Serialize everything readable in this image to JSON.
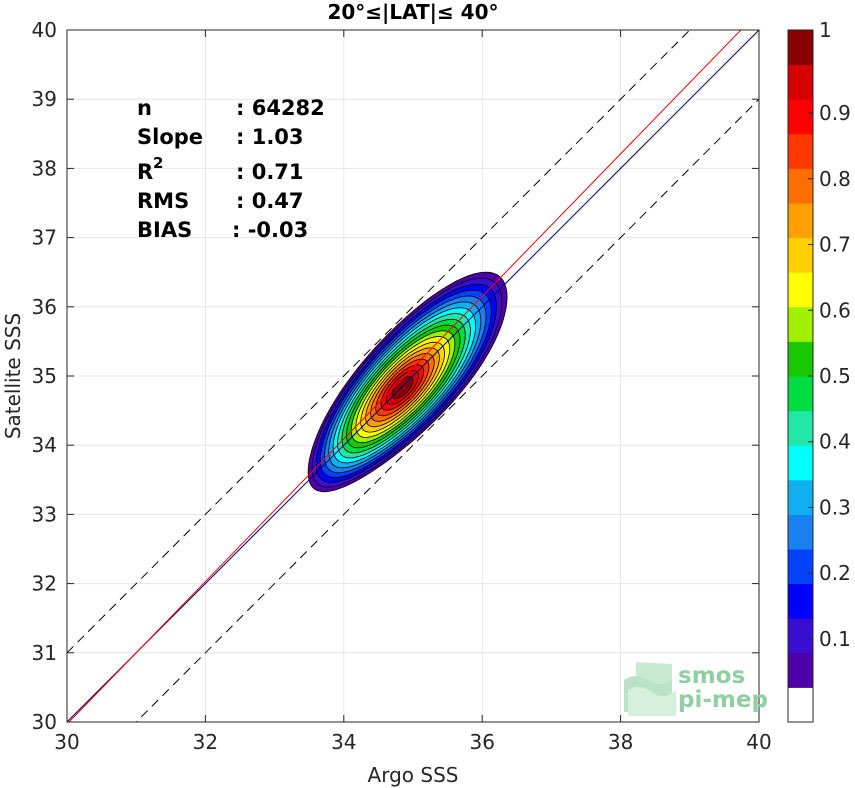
{
  "chart_data": {
    "type": "contour",
    "title": "20°≤|LAT|≤ 40°",
    "xlabel": "Argo SSS",
    "ylabel": "Satellite SSS",
    "xlim": [
      30,
      40
    ],
    "ylim": [
      30,
      40
    ],
    "xticks": [
      30,
      32,
      34,
      36,
      38,
      40
    ],
    "yticks": [
      30,
      31,
      32,
      33,
      34,
      35,
      36,
      37,
      38,
      39,
      40
    ],
    "grid": true,
    "stats": {
      "n_label": "n",
      "n_value": ": 64282",
      "slope_label": "Slope",
      "slope_value": ": 1.03",
      "r2_label": "R",
      "r2_sup": "2",
      "r2_value": ": 0.71",
      "rms_label": "RMS",
      "rms_value": ": 0.47",
      "bias_label": "BIAS",
      "bias_value": ": -0.03"
    },
    "reference_lines": [
      {
        "name": "one-to-one",
        "color": "#000080",
        "style": "solid",
        "intercept": 0
      },
      {
        "name": "plus-one",
        "color": "#000000",
        "style": "dashed",
        "intercept": 1
      },
      {
        "name": "minus-one",
        "color": "#000000",
        "style": "dashed",
        "intercept": -1
      }
    ],
    "regression_line": {
      "color": "#ff0000",
      "slope": 1.03,
      "bias": -0.03,
      "x_range": [
        30,
        40
      ]
    },
    "density": {
      "center": [
        34.85,
        34.85
      ],
      "peak_offset": [
        0.2,
        0.25
      ],
      "long_axis_angle_deg": 47,
      "outer_extent": {
        "x": [
          33.6,
          36.35
        ],
        "y": [
          33.35,
          36.55
        ]
      },
      "levels": [
        0.05,
        0.1,
        0.2,
        0.3,
        0.4,
        0.5,
        0.6,
        0.7,
        0.8,
        0.9
      ]
    },
    "colorbar": {
      "min": 0,
      "max": 1,
      "ticks": [
        "0.1",
        "0.2",
        "0.3",
        "0.4",
        "0.5",
        "0.6",
        "0.7",
        "0.8",
        "0.9",
        "1"
      ],
      "colors": [
        "#ffffff",
        "#5000a8",
        "#3a0ed0",
        "#0000ff",
        "#0042ff",
        "#1a80f0",
        "#10b0f0",
        "#00ffff",
        "#20e6a8",
        "#00dd40",
        "#18c800",
        "#a0f000",
        "#ffff00",
        "#ffd000",
        "#ffa000",
        "#ff6e00",
        "#ff3800",
        "#ff0000",
        "#d60000",
        "#880000"
      ]
    }
  },
  "logo": {
    "line1": "smos",
    "line2": "pi-mep"
  }
}
